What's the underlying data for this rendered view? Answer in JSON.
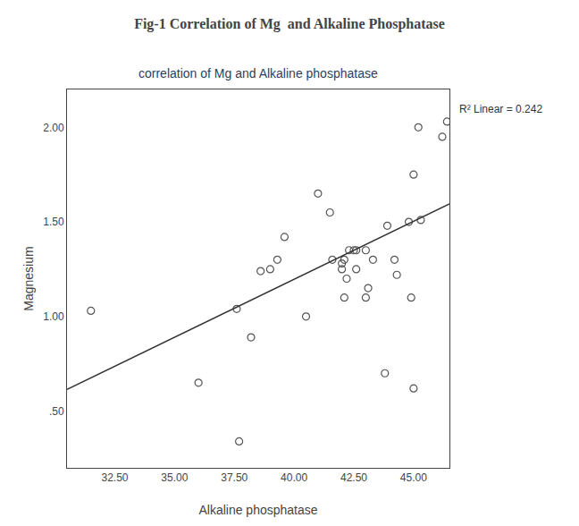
{
  "chart_data": {
    "type": "scatter",
    "title": "Fig-1 Correlation of Mg  and Alkaline Phosphatase",
    "subtitle": "correlation of Mg and Alkaline phosphatase",
    "x_label": "Alkaline phosphatase",
    "y_label": "Magnesium",
    "annotations": [
      "R² Linear = 0.242"
    ],
    "series": [
      {
        "type": "scatter",
        "color": "#555555",
        "marker": "circle-open",
        "x": [
          31.5,
          37.6,
          37.7,
          36.0,
          38.2,
          38.6,
          39.0,
          39.3,
          39.6,
          40.5,
          41.0,
          41.5,
          41.6,
          42.0,
          42.0,
          42.1,
          42.1,
          42.2,
          42.3,
          42.5,
          42.6,
          42.6,
          43.0,
          43.0,
          43.1,
          43.3,
          43.8,
          43.9,
          44.2,
          44.3,
          44.8,
          44.9,
          45.0,
          45.0,
          45.2,
          45.3,
          46.2,
          46.4
        ],
        "values": [
          1.03,
          1.04,
          0.34,
          0.65,
          0.89,
          1.24,
          1.25,
          1.3,
          1.42,
          1.0,
          1.65,
          1.55,
          1.3,
          1.25,
          1.28,
          1.3,
          1.1,
          1.2,
          1.35,
          1.35,
          1.35,
          1.25,
          1.35,
          1.1,
          1.15,
          1.3,
          0.7,
          1.48,
          1.3,
          1.22,
          1.5,
          1.1,
          0.62,
          1.75,
          2.0,
          1.51,
          1.95,
          2.03
        ]
      },
      {
        "type": "line",
        "color": "#333333",
        "line_style": "solid",
        "x": [
          30.5,
          46.5
        ],
        "values": [
          0.615,
          1.595
        ]
      }
    ],
    "xlim": [
      30.5,
      46.5
    ],
    "ylim": [
      0.2,
      2.2
    ],
    "xticks": [
      {
        "value": 32.5,
        "label": "32.50"
      },
      {
        "value": 35,
        "label": "35.00"
      },
      {
        "value": 37.5,
        "label": "37.50"
      },
      {
        "value": 40,
        "label": "40.00"
      },
      {
        "value": 42.5,
        "label": "42.50"
      },
      {
        "value": 45,
        "label": "45.00"
      }
    ],
    "yticks": [
      {
        "value": 0.5,
        "label": ".50"
      },
      {
        "value": 1,
        "label": "1.00"
      },
      {
        "value": 1.5,
        "label": "1.50"
      },
      {
        "value": 2,
        "label": "2.00"
      }
    ],
    "grid": false
  }
}
